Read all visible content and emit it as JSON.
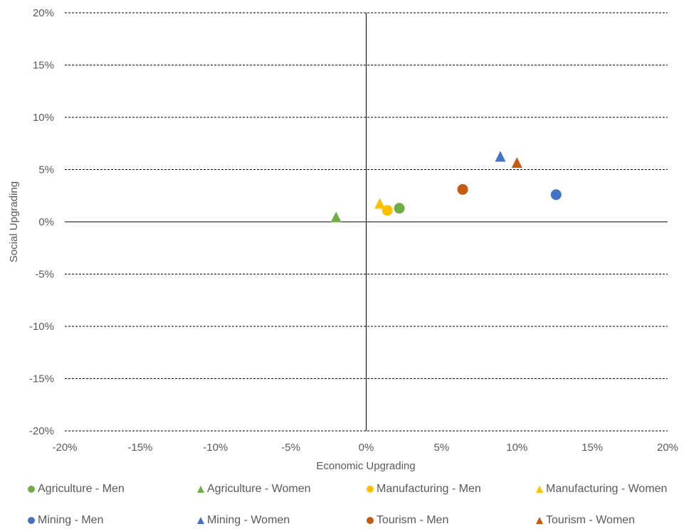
{
  "chart_data": {
    "type": "scatter",
    "xlabel": "Economic Upgrading",
    "ylabel": "Social Upgrading",
    "xlim": [
      -20,
      20
    ],
    "ylim": [
      -20,
      20
    ],
    "x_ticks": [
      "-20%",
      "-15%",
      "-10%",
      "-5%",
      "0%",
      "5%",
      "10%",
      "15%",
      "20%"
    ],
    "y_ticks": [
      "20%",
      "15%",
      "10%",
      "5%",
      "0%",
      "-5%",
      "-10%",
      "-15%",
      "-20%"
    ],
    "grid": "horizontal dashed",
    "legend_position": "bottom",
    "series": [
      {
        "name": "Agriculture - Men",
        "marker": "circle",
        "color": "#70AD47",
        "x": 2.2,
        "y": 1.3
      },
      {
        "name": "Agriculture - Women",
        "marker": "triangle",
        "color": "#70AD47",
        "x": -2.0,
        "y": 0.4
      },
      {
        "name": "Manufacturing - Men",
        "marker": "circle",
        "color": "#FFC000",
        "x": 1.4,
        "y": 1.1
      },
      {
        "name": "Manufacturing - Women",
        "marker": "triangle",
        "color": "#FFC000",
        "x": 0.9,
        "y": 1.7
      },
      {
        "name": "Mining - Men",
        "marker": "circle",
        "color": "#4472C4",
        "x": 12.6,
        "y": 2.6
      },
      {
        "name": "Mining - Women",
        "marker": "triangle",
        "color": "#4472C4",
        "x": 8.9,
        "y": 6.2
      },
      {
        "name": "Tourism - Men",
        "marker": "circle",
        "color": "#C55A11",
        "x": 6.4,
        "y": 3.1
      },
      {
        "name": "Tourism - Women",
        "marker": "triangle",
        "color": "#C55A11",
        "x": 10.0,
        "y": 5.6
      }
    ]
  }
}
